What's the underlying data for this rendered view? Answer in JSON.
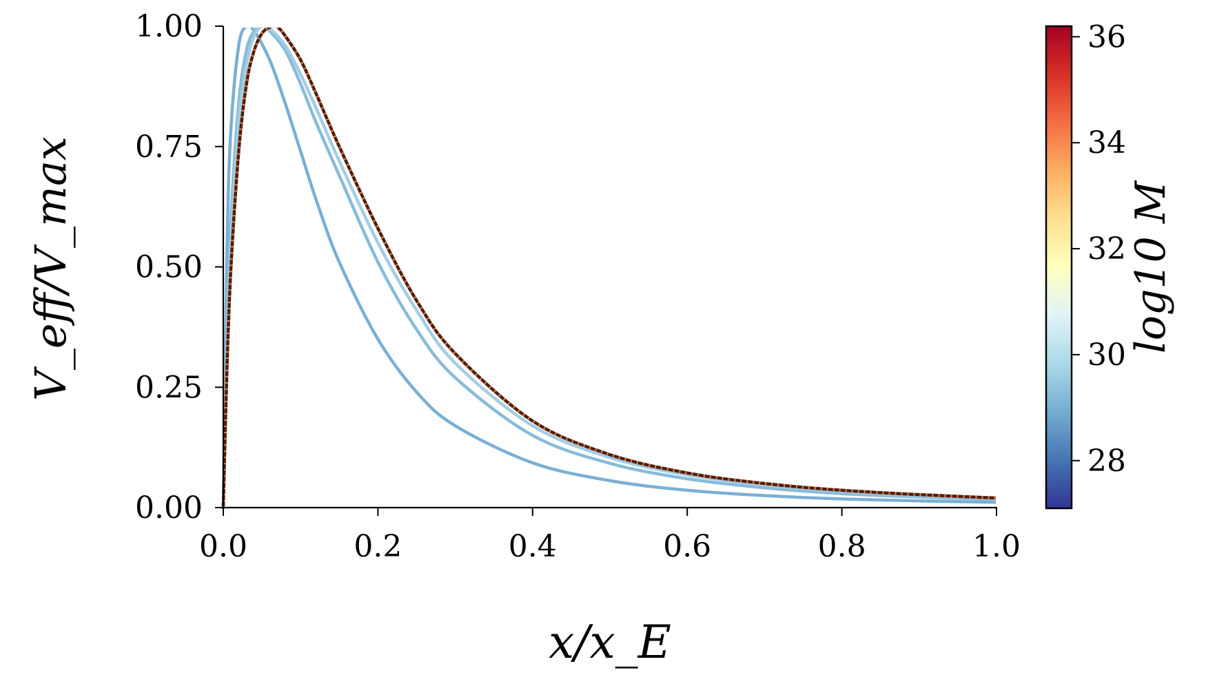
{
  "chart_data": {
    "type": "line",
    "xlabel": "x/x_E",
    "ylabel": "V_eff/V_max",
    "xlim": [
      0.0,
      1.0
    ],
    "ylim": [
      0.0,
      1.0
    ],
    "x_ticks": [
      "0.0",
      "0.2",
      "0.4",
      "0.6",
      "0.8",
      "1.0"
    ],
    "y_ticks": [
      "0.00",
      "0.25",
      "0.50",
      "0.75",
      "1.00"
    ],
    "grid": false,
    "series": [
      {
        "color": "#79afd4",
        "style": "solid",
        "x": [
          0.0,
          0.005,
          0.01,
          0.02,
          0.03,
          0.04,
          0.06,
          0.08,
          0.1,
          0.12,
          0.15,
          0.2,
          0.25,
          0.3,
          0.4,
          0.5,
          0.6,
          0.7,
          0.8,
          0.9,
          1.0
        ],
        "y": [
          0.0,
          0.55,
          0.79,
          0.96,
          1.0,
          0.99,
          0.93,
          0.84,
          0.74,
          0.64,
          0.51,
          0.35,
          0.24,
          0.17,
          0.093,
          0.056,
          0.036,
          0.025,
          0.018,
          0.014,
          0.011
        ]
      },
      {
        "color": "#87bbda",
        "style": "solid",
        "x": [
          0.0,
          0.005,
          0.01,
          0.02,
          0.03,
          0.04,
          0.05,
          0.06,
          0.08,
          0.1,
          0.12,
          0.15,
          0.2,
          0.25,
          0.3,
          0.4,
          0.5,
          0.6,
          0.7,
          0.8,
          0.9,
          1.0
        ],
        "y": [
          0.0,
          0.38,
          0.6,
          0.84,
          0.95,
          0.99,
          1.0,
          0.99,
          0.95,
          0.88,
          0.8,
          0.69,
          0.51,
          0.37,
          0.27,
          0.15,
          0.092,
          0.06,
          0.041,
          0.029,
          0.022,
          0.017
        ]
      },
      {
        "color": "#a3cde3",
        "style": "solid",
        "x": [
          0.0,
          0.005,
          0.01,
          0.02,
          0.03,
          0.04,
          0.05,
          0.06,
          0.08,
          0.1,
          0.12,
          0.15,
          0.2,
          0.25,
          0.3,
          0.4,
          0.5,
          0.6,
          0.7,
          0.8,
          0.9,
          1.0
        ],
        "y": [
          0.0,
          0.34,
          0.55,
          0.8,
          0.92,
          0.98,
          1.0,
          0.995,
          0.96,
          0.9,
          0.83,
          0.72,
          0.55,
          0.41,
          0.3,
          0.17,
          0.104,
          0.068,
          0.047,
          0.034,
          0.025,
          0.019
        ]
      },
      {
        "color": "#4a2010",
        "style": "solid",
        "x": [
          0.0,
          0.005,
          0.01,
          0.02,
          0.03,
          0.04,
          0.05,
          0.06,
          0.065,
          0.07,
          0.08,
          0.1,
          0.12,
          0.15,
          0.2,
          0.25,
          0.3,
          0.4,
          0.5,
          0.6,
          0.7,
          0.8,
          0.9,
          1.0
        ],
        "y": [
          0.0,
          0.3,
          0.5,
          0.74,
          0.88,
          0.95,
          0.985,
          0.998,
          1.0,
          0.999,
          0.98,
          0.93,
          0.86,
          0.75,
          0.58,
          0.43,
          0.32,
          0.18,
          0.11,
          0.072,
          0.05,
          0.036,
          0.027,
          0.02
        ]
      },
      {
        "color": "#f07c4a",
        "style": "dotted",
        "x": [
          0.0,
          0.005,
          0.01,
          0.02,
          0.03,
          0.04,
          0.05,
          0.06,
          0.065,
          0.07,
          0.08,
          0.1,
          0.12,
          0.15,
          0.2,
          0.25,
          0.3,
          0.4,
          0.5,
          0.6,
          0.7,
          0.8,
          0.9,
          1.0
        ],
        "y": [
          0.0,
          0.3,
          0.5,
          0.74,
          0.88,
          0.95,
          0.985,
          0.998,
          1.0,
          0.999,
          0.98,
          0.93,
          0.86,
          0.75,
          0.58,
          0.43,
          0.32,
          0.18,
          0.11,
          0.072,
          0.05,
          0.036,
          0.027,
          0.02
        ]
      }
    ],
    "colorbar": {
      "label": "log10 M",
      "range": [
        27.1,
        36.2
      ],
      "ticks": [
        "28",
        "30",
        "32",
        "34",
        "36"
      ],
      "colormap": "RdYlBu_r",
      "stops": [
        "#313695",
        "#4575b4",
        "#74add1",
        "#abd9e9",
        "#e0f3f8",
        "#ffffbf",
        "#fee090",
        "#fdae61",
        "#f46d43",
        "#d73027",
        "#a50026"
      ]
    }
  }
}
